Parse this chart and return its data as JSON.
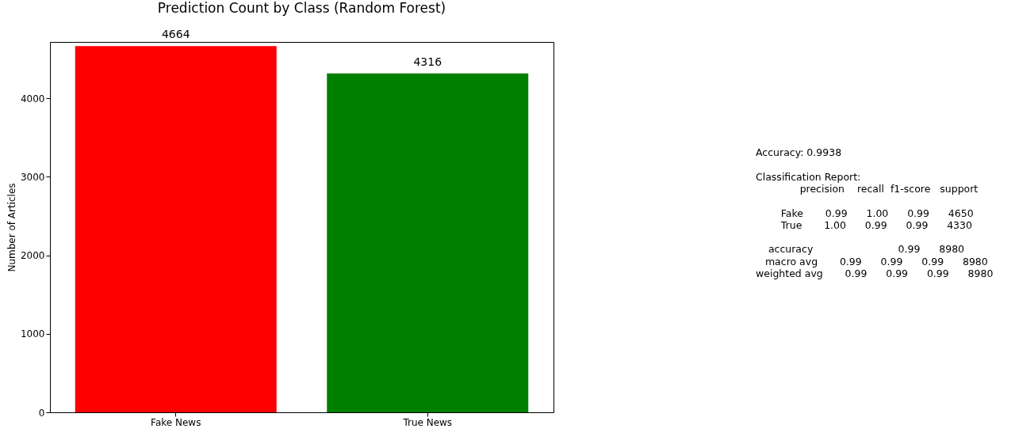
{
  "chart_data": [
    {
      "type": "bar",
      "title": "Prediction Count by Class (Random Forest)",
      "ylabel": "Number of Articles",
      "categories": [
        "Fake News",
        "True News"
      ],
      "values": [
        4664,
        4316
      ],
      "colors": [
        "#ff0000",
        "#008000"
      ],
      "ylim": [
        0,
        4716
      ],
      "yticks": [
        0,
        {
          "value": 1000,
          "label": "1000"
        },
        {
          "value": 2000,
          "label": "2000"
        },
        {
          "value": 3000,
          "label": "3000"
        },
        {
          "value": 4000,
          "label": "4000"
        }
      ],
      "data_labels": true,
      "grid": false,
      "legend": false
    },
    {
      "type": "other",
      "annotations": [
        "Accuracy: 0.9938\n\nClassification Report:\n              precision    recall  f1-score   support\n\n        Fake       0.99      1.00      0.99      4650\n        True       1.00      0.99      0.99      4330\n\n    accuracy                           0.99      8980\n   macro avg       0.99      0.99      0.99      8980\nweighted avg       0.99      0.99      0.99      8980"
      ]
    }
  ]
}
